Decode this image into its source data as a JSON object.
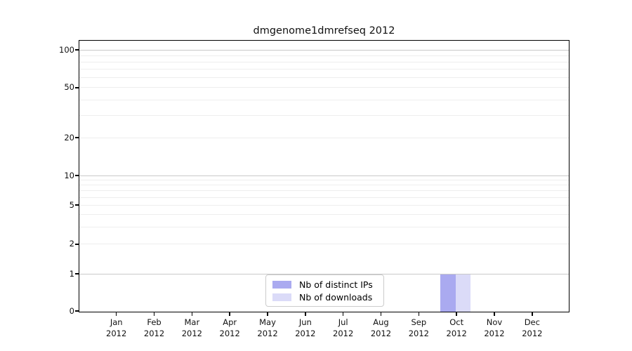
{
  "chart_data": {
    "type": "bar",
    "title": "dmgenome1dmrefseq 2012",
    "categories": [
      "Jan",
      "Feb",
      "Mar",
      "Apr",
      "May",
      "Jun",
      "Jul",
      "Aug",
      "Sep",
      "Oct",
      "Nov",
      "Dec"
    ],
    "category_year_line": "2012",
    "series": [
      {
        "name": "Nb of distinct IPs",
        "color": "#aaaaf0",
        "values": [
          0,
          0,
          0,
          0,
          0,
          0,
          0,
          0,
          0,
          1,
          0,
          0
        ]
      },
      {
        "name": "Nb of downloads",
        "color": "#dbdbf8",
        "values": [
          0,
          0,
          0,
          0,
          0,
          0,
          0,
          0,
          0,
          1,
          0,
          0
        ]
      }
    ],
    "y_scale": "symlog",
    "y_ticks": [
      100,
      50,
      20,
      10,
      5,
      2,
      1,
      0
    ],
    "ylim": [
      0,
      118
    ],
    "grid": true,
    "legend_position": "lower center inside",
    "bar_width_fraction": 0.4
  }
}
